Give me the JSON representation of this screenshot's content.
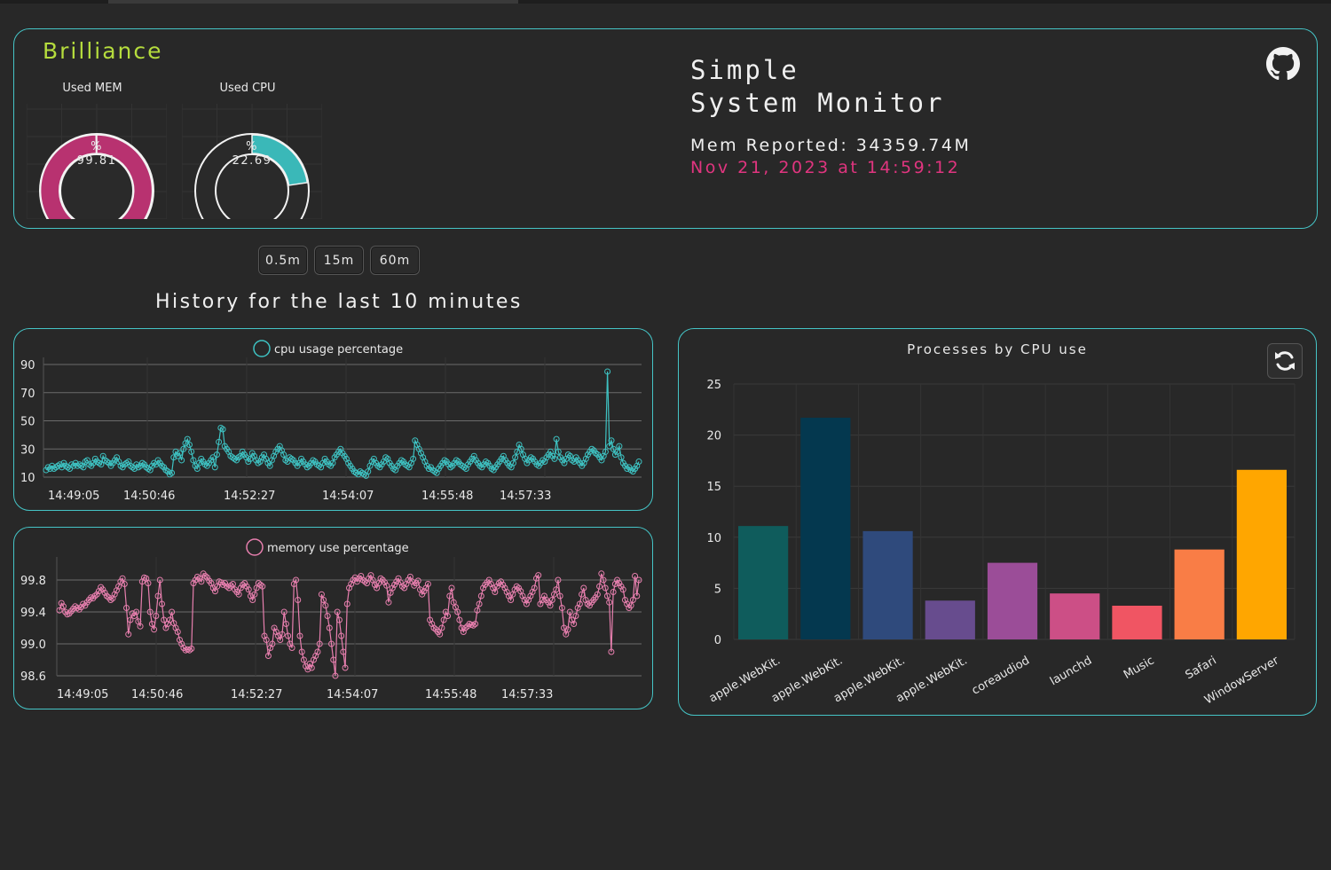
{
  "header": {
    "brand": "Brilliance",
    "title_line1": "Simple",
    "title_line2": "System Monitor",
    "mem_reported": "Mem Reported: 34359.74M",
    "timestamp": "Nov 21, 2023 at 14:59:12",
    "github_icon": "github-icon"
  },
  "gauges": {
    "mem": {
      "label": "Used MEM",
      "unit": "%",
      "value": 99.81,
      "value_text": "99.81",
      "color": "#b83270"
    },
    "cpu": {
      "label": "Used CPU",
      "unit": "%",
      "value": 22.69,
      "value_text": "22.69",
      "color": "#3ab8b8"
    }
  },
  "ranges": [
    {
      "label": "0.5m"
    },
    {
      "label": "15m"
    },
    {
      "label": "60m"
    }
  ],
  "history_title": "History for the last 10 minutes",
  "cpu_chart": {
    "legend": "cpu usage percentage",
    "color": "#3ec2c2",
    "ylim": [
      10,
      90
    ],
    "yticks": [
      "90",
      "70",
      "50",
      "30",
      "10"
    ],
    "xticks": [
      "14:49:05",
      "14:50:46",
      "14:52:27",
      "14:54:07",
      "14:55:48",
      "14:57:33"
    ],
    "values": [
      15,
      17,
      16,
      18,
      16,
      17,
      18,
      19,
      17,
      20,
      18,
      17,
      16,
      19,
      18,
      20,
      18,
      19,
      18,
      17,
      21,
      22,
      19,
      18,
      20,
      23,
      21,
      20,
      19,
      25,
      22,
      21,
      20,
      18,
      20,
      22,
      24,
      21,
      18,
      17,
      19,
      20,
      21,
      18,
      17,
      16,
      19,
      17,
      18,
      20,
      19,
      17,
      16,
      15,
      18,
      20,
      19,
      22,
      20,
      18,
      17,
      15,
      14,
      12,
      13,
      24,
      28,
      25,
      27,
      22,
      30,
      34,
      37,
      33,
      28,
      22,
      18,
      16,
      20,
      23,
      21,
      19,
      18,
      20,
      22,
      24,
      17,
      26,
      35,
      45,
      44,
      32,
      30,
      28,
      25,
      24,
      23,
      22,
      24,
      25,
      28,
      26,
      24,
      21,
      23,
      27,
      25,
      22,
      20,
      21,
      24,
      26,
      23,
      20,
      18,
      22,
      25,
      28,
      30,
      32,
      29,
      26,
      22,
      21,
      24,
      23,
      22,
      20,
      18,
      20,
      23,
      21,
      19,
      17,
      18,
      20,
      22,
      21,
      19,
      18,
      17,
      20,
      23,
      21,
      19,
      18,
      20,
      24,
      26,
      28,
      30,
      27,
      25,
      23,
      20,
      18,
      16,
      14,
      13,
      12,
      14,
      13,
      12,
      11,
      14,
      18,
      21,
      23,
      20,
      18,
      17,
      19,
      21,
      24,
      23,
      20,
      18,
      16,
      15,
      18,
      20,
      22,
      21,
      19,
      18,
      17,
      20,
      23,
      36,
      33,
      30,
      27,
      24,
      21,
      18,
      16,
      17,
      15,
      14,
      13,
      16,
      18,
      20,
      22,
      21,
      19,
      17,
      18,
      20,
      22,
      21,
      19,
      18,
      17,
      16,
      19,
      21,
      23,
      25,
      22,
      20,
      18,
      17,
      19,
      21,
      20,
      18,
      16,
      15,
      17,
      19,
      21,
      23,
      25,
      22,
      20,
      18,
      17,
      20,
      24,
      28,
      33,
      30,
      26,
      23,
      20,
      22,
      24,
      23,
      21,
      19,
      18,
      20,
      22,
      21,
      24,
      26,
      28,
      25,
      23,
      37,
      28,
      24,
      22,
      20,
      23,
      26,
      25,
      22,
      21,
      24,
      22,
      20,
      18,
      20,
      23,
      26,
      28,
      30,
      29,
      27,
      26,
      24,
      22,
      25,
      28,
      85,
      32,
      36,
      30,
      26,
      28,
      32,
      24,
      20,
      18,
      16,
      17,
      15,
      14,
      16,
      18,
      21
    ]
  },
  "mem_chart": {
    "legend": "memory use percentage",
    "color": "#e77fae",
    "ylim": [
      98.6,
      100.0
    ],
    "yticks": [
      "99.8",
      "99.4",
      "99.0",
      "98.6"
    ],
    "xticks": [
      "14:49:05",
      "14:50:46",
      "14:52:27",
      "14:54:07",
      "14:55:48",
      "14:57:33"
    ],
    "values": [
      99.42,
      99.51,
      99.47,
      99.4,
      99.37,
      99.38,
      99.41,
      99.44,
      99.47,
      99.45,
      99.43,
      99.46,
      99.5,
      99.48,
      99.52,
      99.55,
      99.58,
      99.57,
      99.6,
      99.62,
      99.66,
      99.71,
      99.68,
      99.64,
      99.6,
      99.58,
      99.55,
      99.57,
      99.62,
      99.67,
      99.72,
      99.78,
      99.82,
      99.75,
      99.45,
      99.12,
      99.3,
      99.38,
      99.35,
      99.4,
      99.28,
      99.22,
      99.78,
      99.83,
      99.82,
      99.76,
      99.4,
      99.25,
      99.18,
      99.35,
      99.6,
      99.8,
      99.5,
      99.3,
      99.2,
      99.25,
      99.3,
      99.4,
      99.26,
      99.2,
      99.15,
      99.05,
      99.0,
      98.95,
      98.92,
      98.93,
      98.92,
      98.94,
      99.76,
      99.8,
      99.84,
      99.82,
      99.78,
      99.88,
      99.85,
      99.83,
      99.79,
      99.76,
      99.7,
      99.66,
      99.72,
      99.78,
      99.77,
      99.74,
      99.76,
      99.72,
      99.7,
      99.73,
      99.75,
      99.68,
      99.65,
      99.62,
      99.7,
      99.74,
      99.76,
      99.72,
      99.68,
      99.6,
      99.55,
      99.62,
      99.7,
      99.76,
      99.74,
      99.72,
      99.1,
      99.05,
      98.85,
      98.95,
      99.0,
      99.2,
      99.15,
      99.1,
      99.05,
      99.12,
      99.4,
      99.25,
      99.1,
      99.0,
      98.95,
      99.75,
      99.8,
      99.55,
      99.1,
      98.9,
      98.8,
      98.72,
      98.68,
      98.75,
      98.7,
      98.8,
      98.85,
      98.9,
      99.0,
      99.62,
      99.55,
      99.48,
      99.35,
      99.2,
      99.0,
      98.8,
      98.6,
      99.4,
      99.3,
      99.1,
      98.9,
      98.7,
      99.5,
      99.7,
      99.75,
      99.8,
      99.83,
      99.78,
      99.82,
      99.85,
      99.8,
      99.78,
      99.76,
      99.82,
      99.86,
      99.8,
      99.74,
      99.7,
      99.76,
      99.82,
      99.8,
      99.77,
      99.73,
      99.52,
      99.64,
      99.7,
      99.74,
      99.78,
      99.82,
      99.77,
      99.72,
      99.7,
      99.75,
      99.8,
      99.84,
      99.78,
      99.73,
      99.76,
      99.79,
      99.68,
      99.62,
      99.66,
      99.7,
      99.75,
      99.3,
      99.25,
      99.2,
      99.18,
      99.15,
      99.12,
      99.2,
      99.3,
      99.4,
      99.35,
      99.6,
      99.7,
      99.52,
      99.46,
      99.4,
      99.3,
      99.2,
      99.15,
      99.2,
      99.22,
      99.25,
      99.24,
      99.23,
      99.25,
      99.42,
      99.5,
      99.6,
      99.7,
      99.74,
      99.77,
      99.8,
      99.75,
      99.7,
      99.65,
      99.72,
      99.76,
      99.78,
      99.74,
      99.7,
      99.65,
      99.6,
      99.55,
      99.62,
      99.68,
      99.72,
      99.7,
      99.66,
      99.6,
      99.55,
      99.5,
      99.55,
      99.6,
      99.65,
      99.7,
      99.82,
      99.86,
      99.5,
      99.55,
      99.6,
      99.55,
      99.52,
      99.48,
      99.55,
      99.62,
      99.68,
      99.8,
      99.6,
      99.45,
      99.2,
      99.12,
      99.18,
      99.4,
      99.3,
      99.25,
      99.35,
      99.45,
      99.5,
      99.62,
      99.7,
      99.55,
      99.5,
      99.48,
      99.52,
      99.55,
      99.58,
      99.62,
      99.72,
      99.88,
      99.8,
      99.7,
      99.6,
      99.52,
      98.9,
      99.65,
      99.75,
      99.8,
      99.76,
      99.72,
      99.68,
      99.55,
      99.5,
      99.45,
      99.48,
      99.55,
      99.85,
      99.6,
      99.8
    ]
  },
  "process_chart": {
    "type": "bar",
    "title": "Processes by CPU use",
    "refresh_icon": "refresh-icon",
    "categories": [
      "apple.WebKit.",
      "apple.WebKit.",
      "apple.WebKit.",
      "apple.WebKit.",
      "coreaudiod",
      "launchd",
      "Music",
      "Safari",
      "WindowServer"
    ],
    "values": [
      11.1,
      21.7,
      10.6,
      3.8,
      7.5,
      4.5,
      3.3,
      8.8,
      16.6
    ],
    "colors": [
      "#0f5c5c",
      "#04384f",
      "#2f4a7c",
      "#674c8e",
      "#9b4d98",
      "#cc4f86",
      "#f05563",
      "#f97d46",
      "#ffa600"
    ],
    "ylim": [
      0,
      25
    ],
    "yticks": [
      "25",
      "20",
      "15",
      "10",
      "5",
      "0"
    ]
  }
}
